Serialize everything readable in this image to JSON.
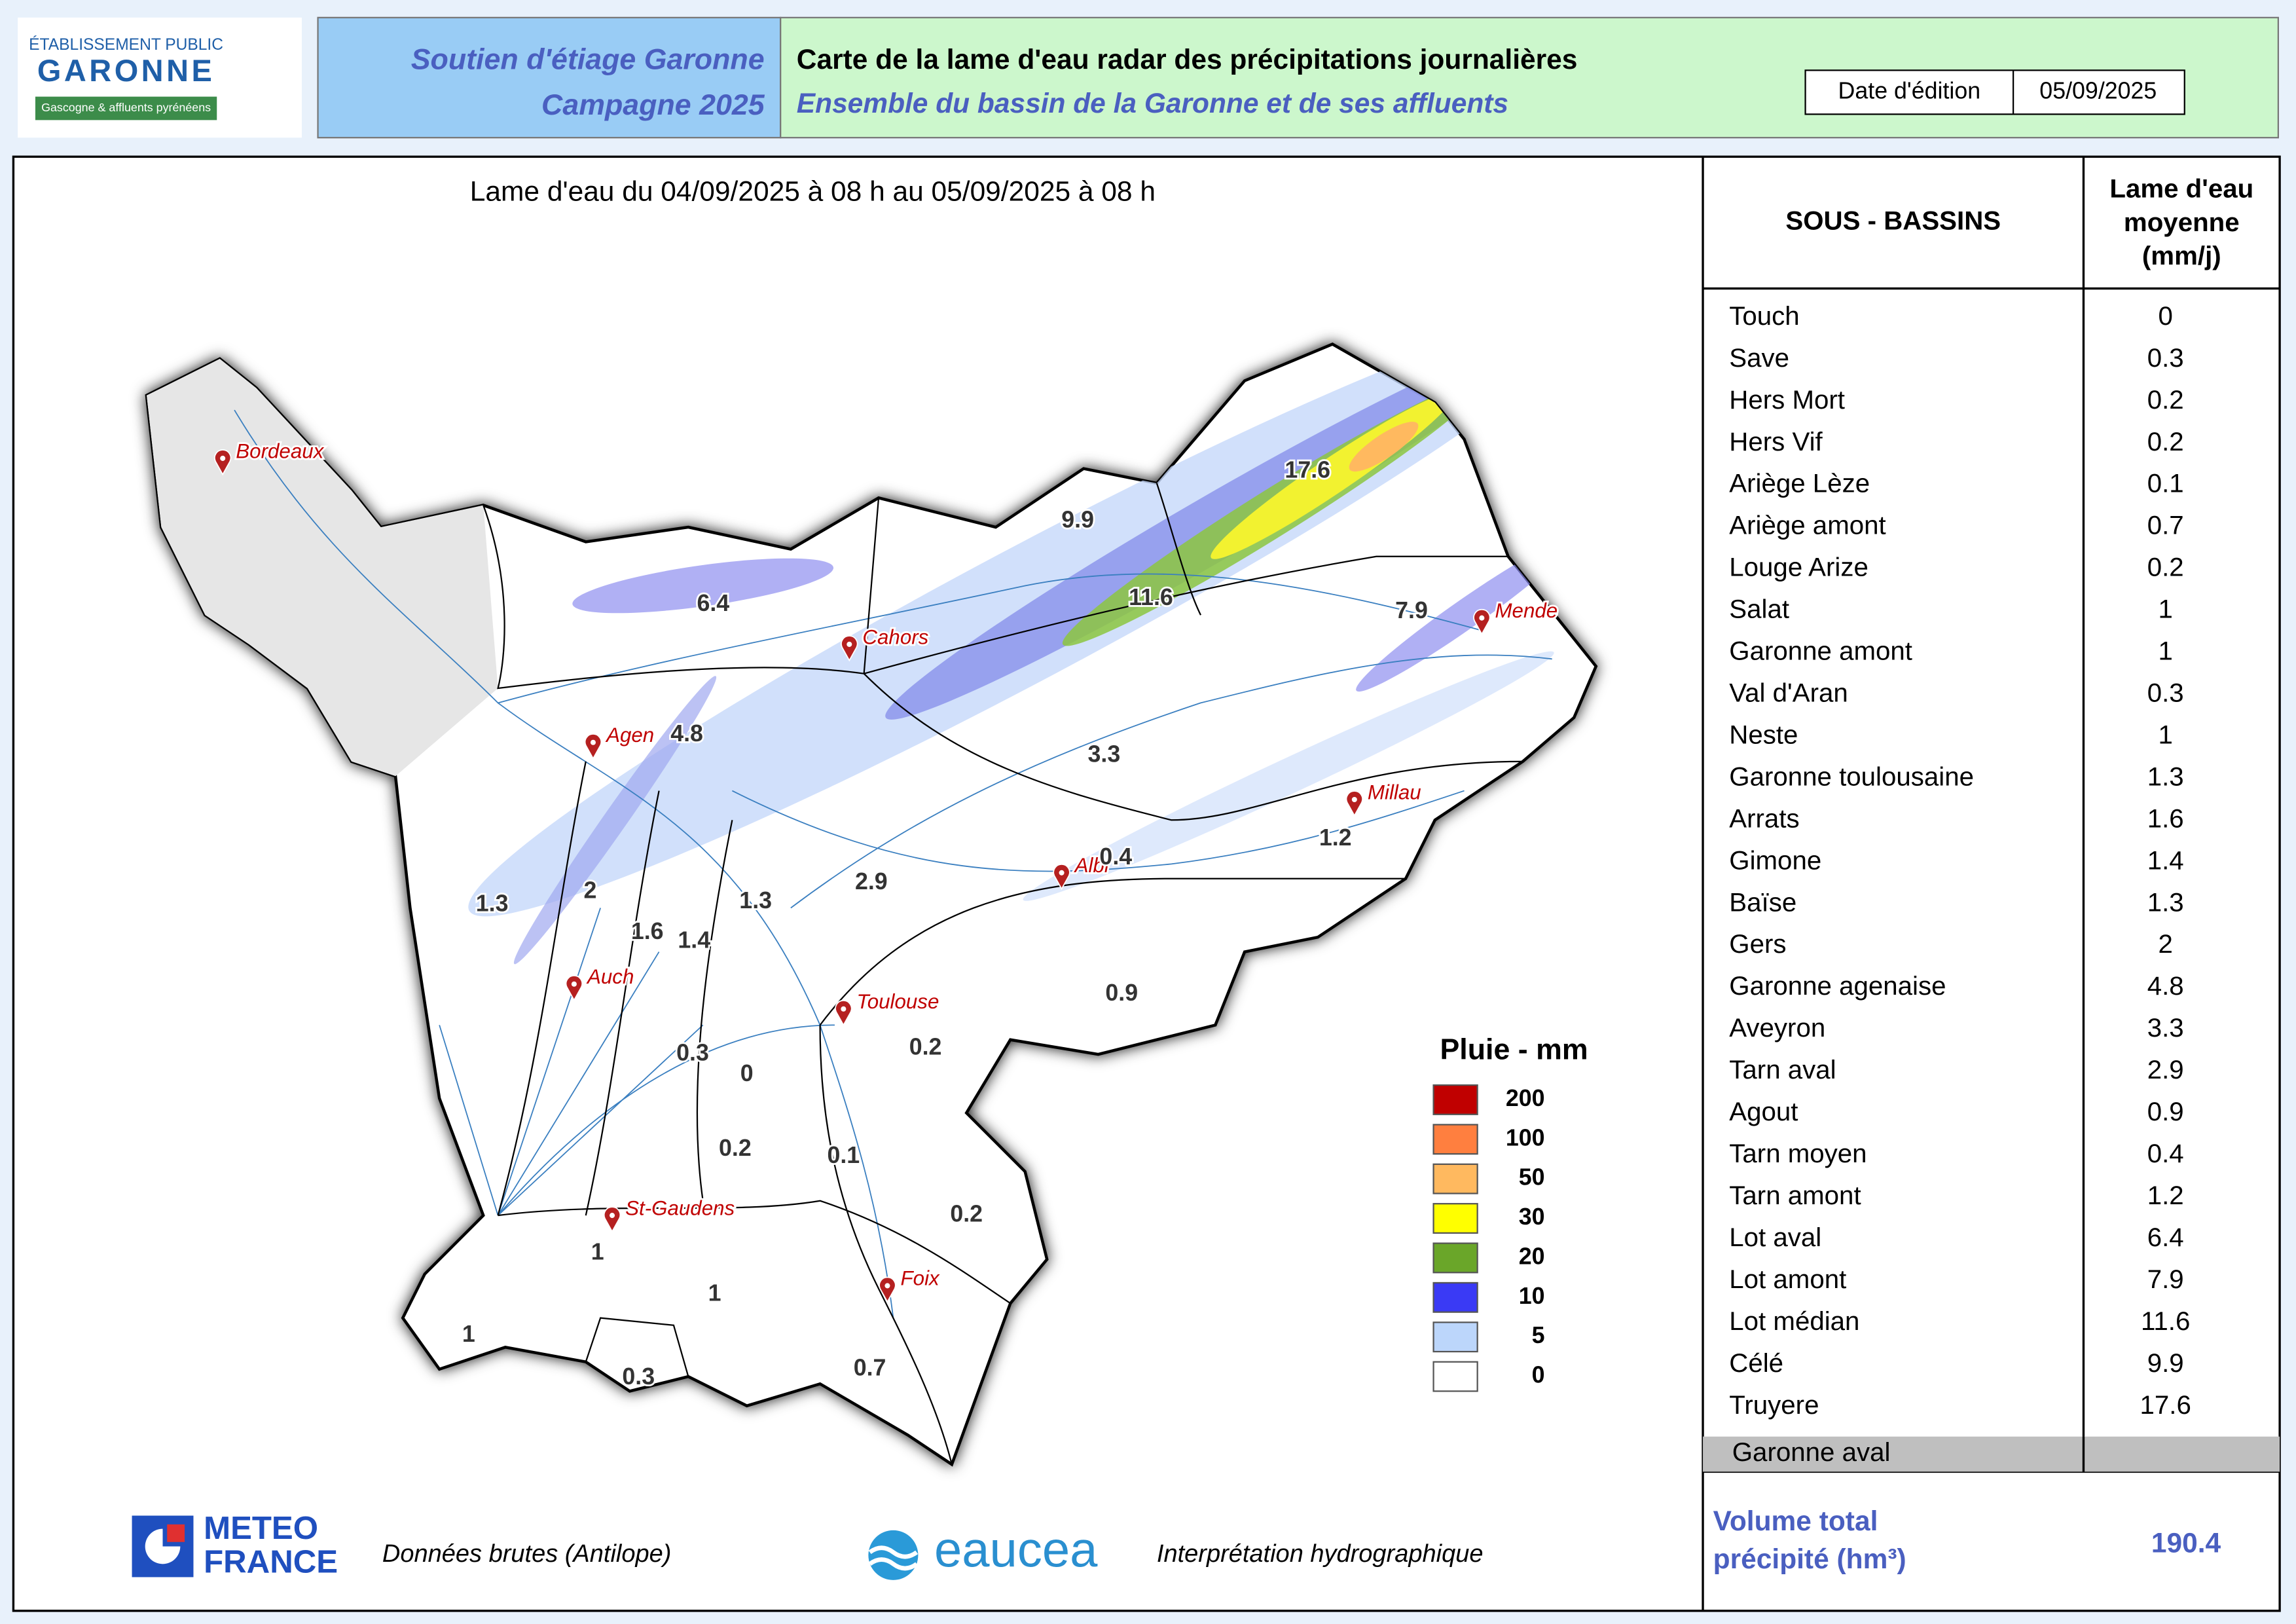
{
  "logo": {
    "line1": "ÉTABLISSEMENT PUBLIC",
    "line2": "GARONNE",
    "line3": "Gascogne & affluents pyrénéens"
  },
  "header": {
    "left1": "Soutien d'étiage Garonne",
    "left2": "Campagne 2025",
    "title": "Carte de la lame d'eau radar des précipitations journalières",
    "subtitle": "Ensemble du bassin de la Garonne et de ses affluents",
    "date_label": "Date d'édition",
    "date": "05/09/2025"
  },
  "map": {
    "period": "Lame d'eau du 04/09/2025  à 08 h au  05/09/2025   à 08 h",
    "cities": [
      "Bordeaux",
      "Cahors",
      "Agen",
      "Mende",
      "Millau",
      "Albi",
      "Auch",
      "Toulouse",
      "St-Gaudens",
      "Foix"
    ],
    "values": [
      17.6,
      9.9,
      11.6,
      7.9,
      6.4,
      4.8,
      3.3,
      1.2,
      0.4,
      2.9,
      1.3,
      1.3,
      2,
      1.6,
      1.4,
      0.9,
      0.3,
      0,
      0.2,
      0.2,
      0.1,
      0.2,
      1,
      1,
      1,
      0.3,
      0.7
    ]
  },
  "legend": {
    "title": "Pluie - mm",
    "classes": [
      {
        "label": "200",
        "color": "#c00000"
      },
      {
        "label": "100",
        "color": "#ff7f3f"
      },
      {
        "label": "50",
        "color": "#ffb95f"
      },
      {
        "label": "30",
        "color": "#ffff00"
      },
      {
        "label": "20",
        "color": "#6aa629"
      },
      {
        "label": "10",
        "color": "#3a3af5"
      },
      {
        "label": "5",
        "color": "#bcd6fb"
      },
      {
        "label": "0",
        "color": "#ffffff"
      }
    ]
  },
  "table": {
    "header1": "SOUS - BASSINS",
    "header2": [
      "Lame d'eau",
      "moyenne",
      "(mm/j)"
    ],
    "rows": [
      [
        "Touch",
        0
      ],
      [
        "Save",
        0.3
      ],
      [
        "Hers Mort",
        0.2
      ],
      [
        "Hers Vif",
        0.2
      ],
      [
        "Ariège Lèze",
        0.1
      ],
      [
        "Ariège amont",
        0.7
      ],
      [
        "Louge Arize",
        0.2
      ],
      [
        "Salat",
        1
      ],
      [
        "Garonne amont",
        1
      ],
      [
        "Val d'Aran",
        0.3
      ],
      [
        "Neste",
        1
      ],
      [
        "Garonne toulousaine",
        1.3
      ],
      [
        "Arrats",
        1.6
      ],
      [
        "Gimone",
        1.4
      ],
      [
        "Baïse",
        1.3
      ],
      [
        "Gers",
        2
      ],
      [
        "Garonne agenaise",
        4.8
      ],
      [
        "Aveyron",
        3.3
      ],
      [
        "Tarn aval",
        2.9
      ],
      [
        "Agout",
        0.9
      ],
      [
        "Tarn moyen",
        0.4
      ],
      [
        "Tarn amont",
        1.2
      ],
      [
        "Lot aval",
        6.4
      ],
      [
        "Lot amont",
        7.9
      ],
      [
        "Lot médian",
        11.6
      ],
      [
        "Célé",
        9.9
      ],
      [
        "Truyere",
        17.6
      ]
    ],
    "last": "Garonne aval",
    "volume_label": [
      "Volume total",
      "précipité (hm³)"
    ],
    "volume": 190.4
  },
  "footer": {
    "meteo1": "METEO",
    "meteo2": "FRANCE",
    "meteo_text": "Données brutes (Antilope)",
    "eaucea": "eaucea",
    "eaucea_text": "Interprétation hydrographique"
  }
}
